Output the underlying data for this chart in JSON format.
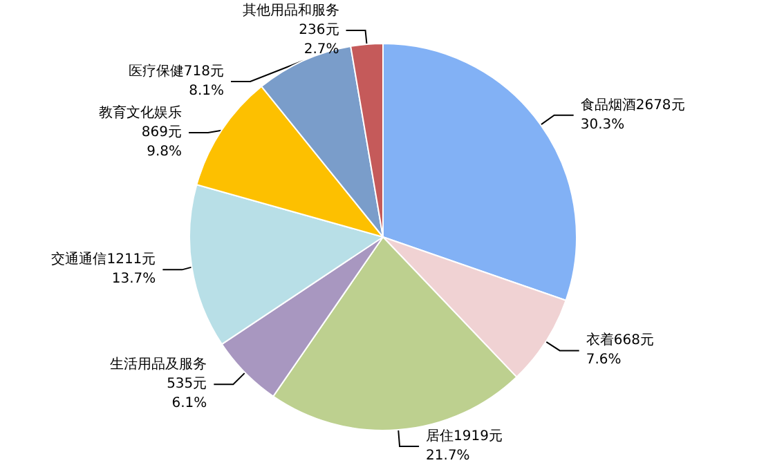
{
  "chart_data": {
    "type": "pie",
    "categories": [
      "食品烟酒",
      "衣着",
      "居住",
      "生活用品及服务",
      "交通通信",
      "教育文化娱乐",
      "医疗保健",
      "其他用品和服务"
    ],
    "values": [
      2678,
      668,
      1919,
      535,
      1211,
      869,
      718,
      236
    ],
    "value_labels": [
      "2678元\n30.3%",
      "668元\n7.6%",
      "1919元\n21.7%",
      "535元\n6.1%",
      "1211元\n13.7%",
      "869元\n9.8%",
      "718元\n8.1%",
      "236元\n2.7%"
    ],
    "colors": [
      "#82b1f5",
      "#f0d2d3",
      "#bdd08f",
      "#a897c0",
      "#b8dfe7",
      "#fdc000",
      "#7a9dca",
      "#c55a5a"
    ],
    "legend": false
  }
}
